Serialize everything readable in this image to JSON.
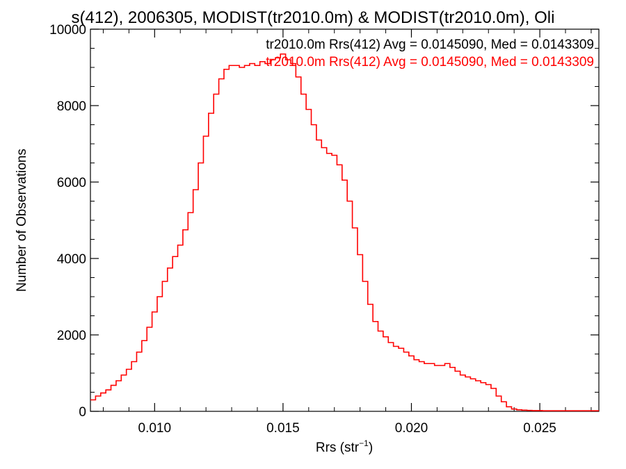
{
  "chart_data": {
    "type": "histogram-step",
    "title": "s(412), 2006305, MODIST(tr2010.0m) & MODIST(tr2010.0m), Oli",
    "xlabel_main": "Rrs (str",
    "xlabel_sup": "−1",
    "xlabel_end": ")",
    "ylabel": "Number of Observations",
    "xlim": [
      0.0075,
      0.0273
    ],
    "ylim": [
      0,
      10000
    ],
    "x_ticks": [
      0.01,
      0.015,
      0.02,
      0.025
    ],
    "x_tick_labels": [
      "0.010",
      "0.015",
      "0.020",
      "0.025"
    ],
    "y_ticks": [
      0,
      2000,
      4000,
      6000,
      8000,
      10000
    ],
    "y_tick_labels": [
      "0",
      "2000",
      "4000",
      "6000",
      "8000",
      "10000"
    ],
    "grid": false,
    "legend": [
      {
        "text": "tr2010.0m Rrs(412) Avg = 0.0145090, Med = 0.0143309",
        "color": "#000000"
      },
      {
        "text": "tr2010.0m Rrs(412) Avg = 0.0145090, Med = 0.0143309",
        "color": "#ff0000"
      }
    ],
    "series": [
      {
        "color": "#ff0000",
        "x": [
          0.0075,
          0.0077,
          0.0079,
          0.0081,
          0.0083,
          0.0085,
          0.0087,
          0.0089,
          0.0091,
          0.0093,
          0.0095,
          0.0097,
          0.0099,
          0.0101,
          0.0103,
          0.0105,
          0.0107,
          0.0109,
          0.0111,
          0.0113,
          0.0115,
          0.0117,
          0.0119,
          0.0121,
          0.0123,
          0.0125,
          0.0127,
          0.0129,
          0.0131,
          0.0133,
          0.0135,
          0.0137,
          0.0139,
          0.0141,
          0.0143,
          0.0145,
          0.0147,
          0.0149,
          0.0151,
          0.0153,
          0.0155,
          0.0157,
          0.0159,
          0.0161,
          0.0163,
          0.0165,
          0.0167,
          0.0169,
          0.0171,
          0.0173,
          0.0175,
          0.0177,
          0.0179,
          0.0181,
          0.0183,
          0.0185,
          0.0187,
          0.0189,
          0.0191,
          0.0193,
          0.0195,
          0.0197,
          0.0199,
          0.0201,
          0.0203,
          0.0205,
          0.0207,
          0.0209,
          0.0211,
          0.0213,
          0.0215,
          0.0217,
          0.0219,
          0.0221,
          0.0223,
          0.0225,
          0.0227,
          0.0229,
          0.0231,
          0.0233,
          0.0235,
          0.0237,
          0.0239,
          0.0241,
          0.0243,
          0.0245,
          0.0247,
          0.0249,
          0.0251,
          0.0253,
          0.0255,
          0.0257,
          0.0259,
          0.0261,
          0.0263,
          0.0265,
          0.0267,
          0.0269,
          0.0271
        ],
        "values": [
          300,
          400,
          480,
          560,
          680,
          800,
          950,
          1100,
          1300,
          1550,
          1850,
          2200,
          2600,
          3000,
          3400,
          3750,
          4050,
          4350,
          4750,
          5200,
          5800,
          6500,
          7200,
          7800,
          8300,
          8700,
          8950,
          9050,
          9050,
          9000,
          9050,
          9100,
          9050,
          9150,
          9100,
          9200,
          9250,
          9350,
          9200,
          9100,
          8750,
          8300,
          7900,
          7500,
          7100,
          6900,
          6750,
          6700,
          6450,
          6050,
          5500,
          4800,
          4100,
          3400,
          2800,
          2350,
          2100,
          1950,
          1800,
          1700,
          1650,
          1550,
          1450,
          1350,
          1300,
          1250,
          1250,
          1200,
          1200,
          1250,
          1150,
          1050,
          950,
          900,
          850,
          800,
          750,
          700,
          600,
          400,
          250,
          120,
          60,
          40,
          30,
          25,
          20,
          20,
          15,
          15,
          15,
          15,
          15,
          15,
          15,
          15,
          15,
          15,
          15
        ]
      }
    ]
  }
}
